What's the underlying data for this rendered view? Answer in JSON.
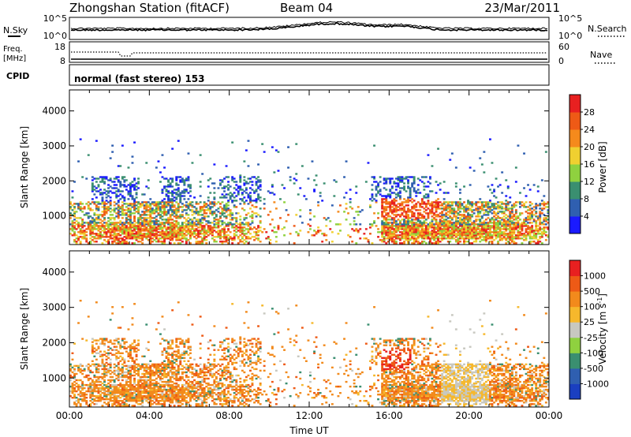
{
  "header": {
    "title": "Zhongshan Station (fitACF)",
    "beam": "Beam 04",
    "date": "23/Mar/2011"
  },
  "top_panels": {
    "nsky_label": "N.Sky",
    "nsky_tick_top": "10^5",
    "nsky_tick_bottom": "10^0",
    "nsearch_label": "N.Search",
    "nsearch_tick_top": "10^5",
    "nsearch_tick_bottom": "10^0",
    "freq_label": "Freq.",
    "freq_unit": "[MHz]",
    "freq_tick_top": "18",
    "freq_tick_bottom": "8",
    "nave_label": "Nave",
    "nave_tick_top": "60",
    "nave_tick_bottom": "0",
    "cpid_label": "CPID",
    "cpid_text": "normal (fast stereo) 153"
  },
  "colors": {
    "power": [
      "#1a1aff",
      "#2f5fb0",
      "#3a8f70",
      "#8fd13f",
      "#f0d030",
      "#f58a1c",
      "#ee5a16",
      "#e82020"
    ],
    "velocity": [
      "#e82020",
      "#ee5a16",
      "#f28a1c",
      "#f6b82c",
      "#c8c8c0",
      "#8fd13f",
      "#3a8f70",
      "#2f5fb0",
      "#1a3fc0"
    ]
  },
  "chart_data": [
    {
      "type": "heatmap",
      "xlabel": "",
      "ylabel": "Slant Range [km]",
      "yticks": [
        "1000",
        "2000",
        "3000",
        "4000"
      ],
      "ylim": [
        180,
        4600
      ],
      "xlim": [
        0,
        24
      ],
      "colorbar_label": "Power [dB]",
      "colorbar_ticks": [
        "4",
        "8",
        "12",
        "16",
        "20",
        "24",
        "28"
      ],
      "colorbar_range": [
        0,
        32
      ]
    },
    {
      "type": "heatmap",
      "xlabel": "Time UT",
      "ylabel": "Slant Range [km]",
      "yticks": [
        "1000",
        "2000",
        "3000",
        "4000"
      ],
      "ylim": [
        180,
        4600
      ],
      "xlim": [
        0,
        24
      ],
      "xticks": [
        "00:00",
        "04:00",
        "08:00",
        "12:00",
        "16:00",
        "20:00",
        "00:00"
      ],
      "colorbar_label": "Velocity [m s",
      "colorbar_label_sup": "-1",
      "colorbar_label_end": "]",
      "colorbar_ticks": [
        "1000",
        "500",
        "100",
        "25",
        "-25",
        "-100",
        "-500",
        "-1000"
      ]
    }
  ]
}
